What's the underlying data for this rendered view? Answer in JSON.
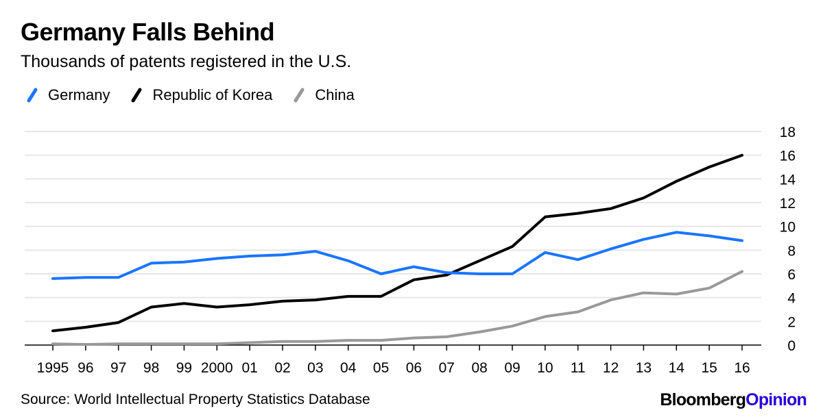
{
  "title": "Germany Falls Behind",
  "subtitle": "Thousands of patents registered in the U.S.",
  "source": "Source: World Intellectual Property Statistics Database",
  "brand": {
    "part1": "Bloomberg",
    "part2": "Opinion",
    "part1_color": "#000000",
    "part2_color": "#2800d7"
  },
  "chart_data": {
    "type": "line",
    "title": "Germany Falls Behind",
    "subtitle": "Thousands of patents registered in the U.S.",
    "xlabel": "",
    "ylabel": "",
    "categories": [
      "1995",
      "96",
      "97",
      "98",
      "99",
      "2000",
      "01",
      "02",
      "03",
      "04",
      "05",
      "06",
      "07",
      "08",
      "09",
      "10",
      "11",
      "12",
      "13",
      "14",
      "15",
      "16"
    ],
    "ylim": [
      0,
      18
    ],
    "yticks": [
      0,
      2,
      4,
      6,
      8,
      10,
      12,
      14,
      16,
      18
    ],
    "y_axis_side": "right",
    "grid": true,
    "legend_position": "top-left",
    "series": [
      {
        "name": "Germany",
        "color": "#1a75ff",
        "values": [
          5.6,
          5.7,
          5.7,
          6.9,
          7.0,
          7.3,
          7.5,
          7.6,
          7.9,
          7.1,
          6.0,
          6.6,
          6.1,
          6.0,
          6.0,
          7.8,
          7.2,
          8.1,
          8.9,
          9.5,
          9.2,
          8.8
        ]
      },
      {
        "name": "Republic of Korea",
        "color": "#000000",
        "values": [
          1.2,
          1.5,
          1.9,
          3.2,
          3.5,
          3.2,
          3.4,
          3.7,
          3.8,
          4.1,
          4.1,
          5.5,
          5.9,
          7.1,
          8.3,
          10.8,
          11.1,
          11.5,
          12.4,
          13.8,
          15.0,
          16.0
        ]
      },
      {
        "name": "China",
        "color": "#999999",
        "values": [
          0.1,
          0.05,
          0.1,
          0.1,
          0.1,
          0.1,
          0.2,
          0.3,
          0.3,
          0.4,
          0.4,
          0.6,
          0.7,
          1.1,
          1.6,
          2.4,
          2.8,
          3.8,
          4.4,
          4.3,
          4.8,
          6.2
        ]
      }
    ]
  }
}
